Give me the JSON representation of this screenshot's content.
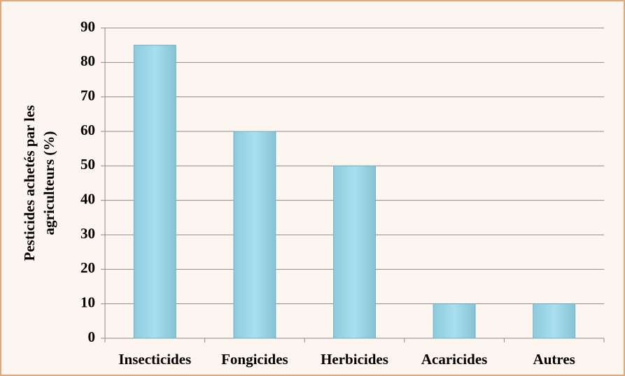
{
  "chart_data": {
    "type": "bar",
    "ylabel": [
      "Pesticides achetés par les",
      "agriculteurs  (%)"
    ],
    "categories": [
      "Insecticides",
      "Fongicides",
      "Herbicides",
      "Acaricides",
      "Autres"
    ],
    "values": [
      85,
      60,
      50,
      10,
      10
    ],
    "color": "#9fd8e8",
    "ylim": [
      0,
      90
    ],
    "yticks": [
      0,
      10,
      20,
      30,
      40,
      50,
      60,
      70,
      80,
      90
    ],
    "grid": true
  }
}
